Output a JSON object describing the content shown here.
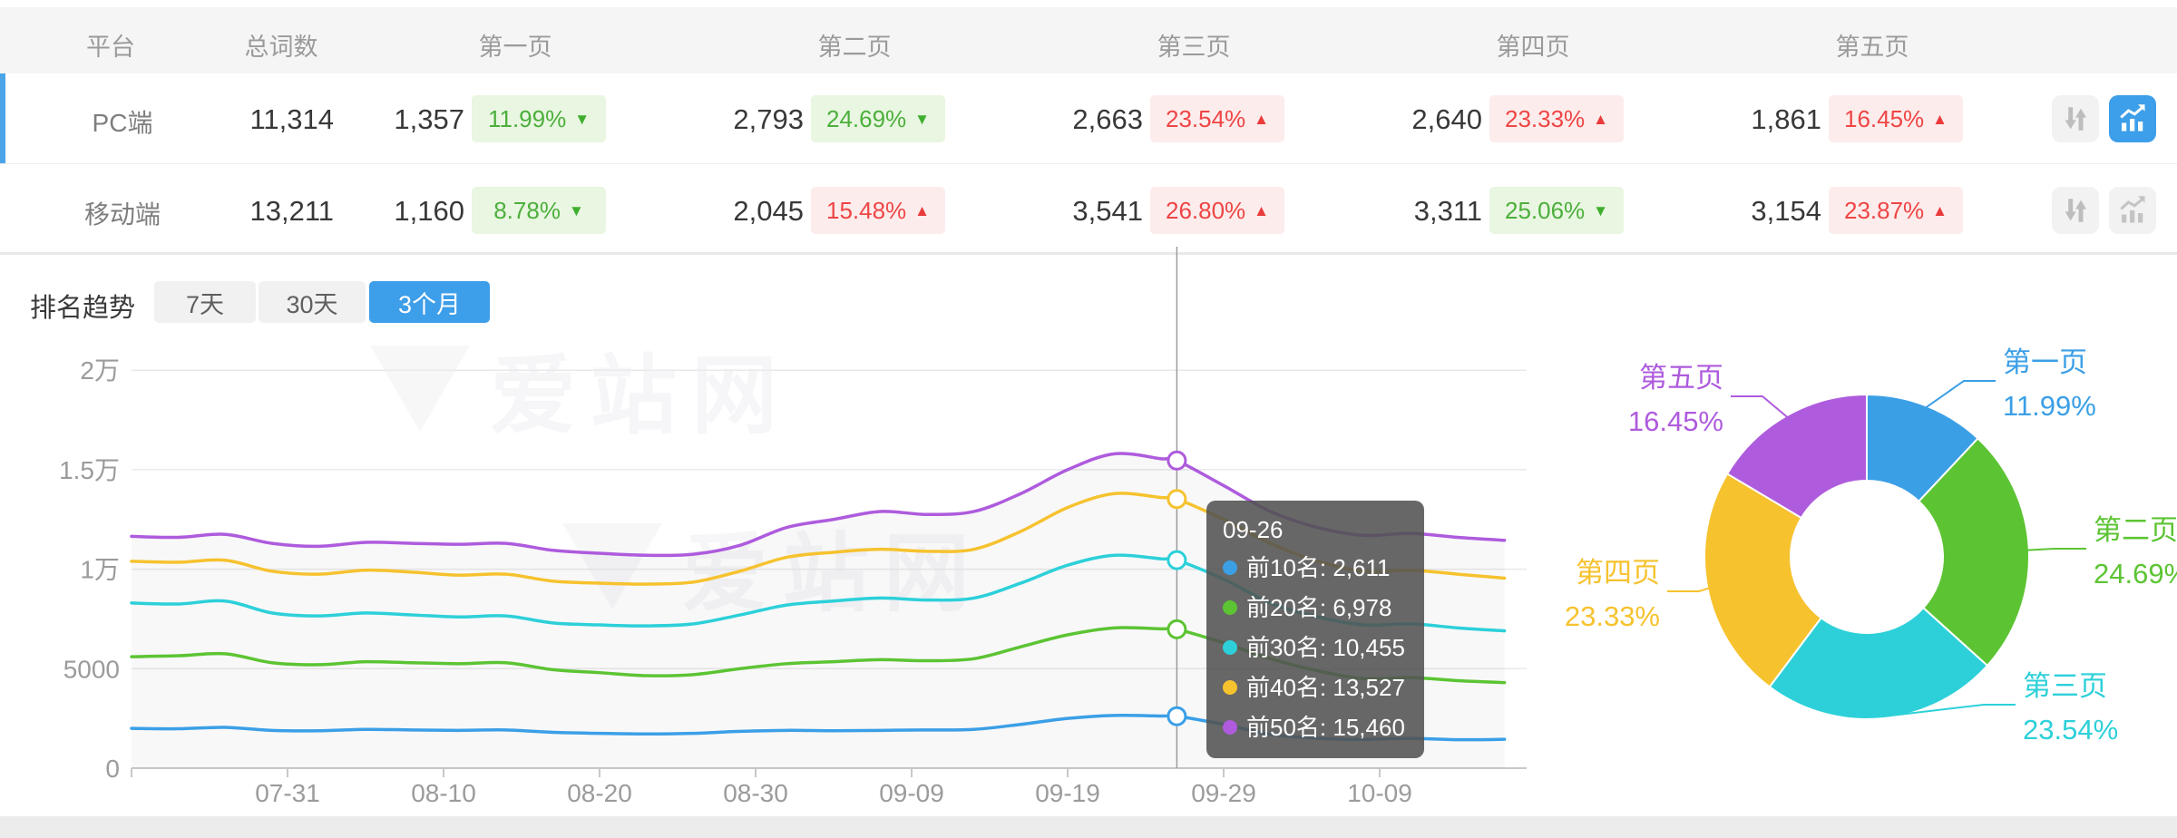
{
  "watermark": "爱站网",
  "table": {
    "headers": [
      "平台",
      "总词数",
      "第一页",
      "第二页",
      "第三页",
      "第四页",
      "第五页"
    ],
    "rows": [
      {
        "platform": "PC端",
        "total": "11,314",
        "selected": true,
        "pages": [
          {
            "count": "1,357",
            "pct": "11.99%",
            "dir": "down"
          },
          {
            "count": "2,793",
            "pct": "24.69%",
            "dir": "down"
          },
          {
            "count": "2,663",
            "pct": "23.54%",
            "dir": "up"
          },
          {
            "count": "2,640",
            "pct": "23.33%",
            "dir": "up"
          },
          {
            "count": "1,861",
            "pct": "16.45%",
            "dir": "up"
          }
        ],
        "chart_active": true
      },
      {
        "platform": "移动端",
        "total": "13,211",
        "selected": false,
        "pages": [
          {
            "count": "1,160",
            "pct": "8.78%",
            "dir": "down"
          },
          {
            "count": "2,045",
            "pct": "15.48%",
            "dir": "up"
          },
          {
            "count": "3,541",
            "pct": "26.80%",
            "dir": "up"
          },
          {
            "count": "3,311",
            "pct": "25.06%",
            "dir": "down"
          },
          {
            "count": "3,154",
            "pct": "23.87%",
            "dir": "up"
          }
        ],
        "chart_active": false
      }
    ]
  },
  "trend": {
    "title": "排名趋势",
    "tabs": [
      {
        "label": "7天",
        "active": false
      },
      {
        "label": "30天",
        "active": false
      },
      {
        "label": "3个月",
        "active": true
      }
    ]
  },
  "chart_data": [
    {
      "type": "line",
      "title": "排名趋势 (3个月)",
      "x_tick_labels": [
        "07-31",
        "08-10",
        "08-20",
        "08-30",
        "09-09",
        "09-19",
        "09-29",
        "10-09"
      ],
      "x_tick_days": [
        10,
        20,
        30,
        40,
        50,
        60,
        70,
        80
      ],
      "y_tick_labels": [
        "0",
        "5000",
        "1万",
        "1.5万",
        "2万"
      ],
      "y_tick_values": [
        0,
        5000,
        10000,
        15000,
        20000
      ],
      "ylim": [
        0,
        20000
      ],
      "grid": true,
      "days": [
        0,
        3,
        6,
        9,
        12,
        15,
        18,
        21,
        24,
        27,
        30,
        33,
        36,
        39,
        42,
        45,
        48,
        51,
        54,
        57,
        60,
        63,
        66,
        67,
        70,
        73,
        76,
        79,
        82,
        85,
        88
      ],
      "series": [
        {
          "name": "前10名",
          "color": "#3B9FE6",
          "values": [
            2000,
            1980,
            2050,
            1900,
            1880,
            1950,
            1920,
            1900,
            1920,
            1800,
            1750,
            1720,
            1750,
            1850,
            1900,
            1880,
            1900,
            1920,
            1950,
            2200,
            2500,
            2650,
            2620,
            2611,
            2200,
            1700,
            1500,
            1450,
            1500,
            1430,
            1450
          ]
        },
        {
          "name": "前20名",
          "color": "#5CC433",
          "values": [
            5600,
            5650,
            5750,
            5300,
            5200,
            5350,
            5300,
            5250,
            5300,
            4950,
            4800,
            4650,
            4700,
            5000,
            5250,
            5350,
            5450,
            5400,
            5500,
            6100,
            6700,
            7050,
            7000,
            6978,
            6300,
            5500,
            4900,
            4500,
            4550,
            4400,
            4300
          ]
        },
        {
          "name": "前30名",
          "color": "#2DD0D9",
          "values": [
            8300,
            8250,
            8400,
            7800,
            7650,
            7800,
            7700,
            7600,
            7650,
            7300,
            7200,
            7150,
            7250,
            7700,
            8200,
            8400,
            8550,
            8450,
            8550,
            9300,
            10200,
            10700,
            10520,
            10455,
            9500,
            8300,
            7600,
            7200,
            7250,
            7050,
            6900
          ]
        },
        {
          "name": "前40名",
          "color": "#F6C22E",
          "values": [
            10400,
            10350,
            10450,
            9900,
            9750,
            9950,
            9850,
            9700,
            9750,
            9400,
            9300,
            9250,
            9350,
            9900,
            10600,
            10850,
            11000,
            10900,
            11000,
            11900,
            13100,
            13800,
            13600,
            13527,
            12500,
            11300,
            10400,
            9900,
            9950,
            9750,
            9550
          ]
        },
        {
          "name": "前50名",
          "color": "#AE5BDD",
          "values": [
            11650,
            11600,
            11750,
            11300,
            11150,
            11350,
            11300,
            11250,
            11300,
            10950,
            10800,
            10700,
            10750,
            11200,
            12100,
            12500,
            12900,
            12750,
            12900,
            13800,
            15000,
            15800,
            15550,
            15460,
            14200,
            12900,
            12100,
            11700,
            11800,
            11600,
            11450
          ]
        }
      ],
      "tooltip": {
        "date": "09-26",
        "day": 67,
        "items": [
          {
            "label": "前10名",
            "value": "2,611"
          },
          {
            "label": "前20名",
            "value": "6,978"
          },
          {
            "label": "前30名",
            "value": "10,455"
          },
          {
            "label": "前40名",
            "value": "13,527"
          },
          {
            "label": "前50名",
            "value": "15,460"
          }
        ]
      }
    },
    {
      "type": "donut",
      "legend_position": "outside-labels",
      "slices": [
        {
          "label": "第一页",
          "value": 11.99,
          "pct_label": "11.99%",
          "color": "#3B9FE6"
        },
        {
          "label": "第二页",
          "value": 24.69,
          "pct_label": "24.69%",
          "color": "#5CC433"
        },
        {
          "label": "第三页",
          "value": 23.54,
          "pct_label": "23.54%",
          "color": "#2DD0D9"
        },
        {
          "label": "第四页",
          "value": 23.33,
          "pct_label": "23.33%",
          "color": "#F6C22E"
        },
        {
          "label": "第五页",
          "value": 16.45,
          "pct_label": "16.45%",
          "color": "#AE5BDD"
        }
      ]
    }
  ]
}
